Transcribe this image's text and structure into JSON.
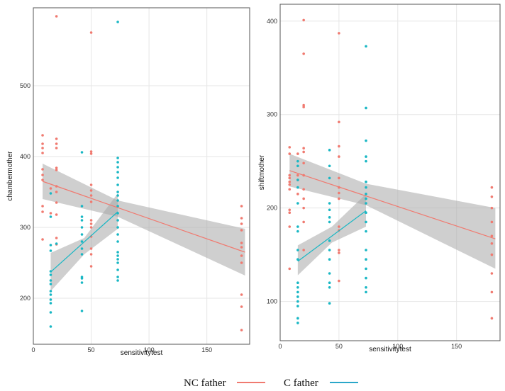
{
  "colors": {
    "nc": "#f07a70",
    "c": "#19b7c4",
    "band": "#a8a8a8"
  },
  "legend": {
    "items": [
      {
        "label": "NC father",
        "color": "#f07a70"
      },
      {
        "label": "C father",
        "color": "#2aa7c9"
      }
    ]
  },
  "chart_data": [
    {
      "type": "scatter",
      "xlabel": "sensitivitytest",
      "ylabel": "chambermother",
      "xlim": [
        0,
        187
      ],
      "ylim": [
        135,
        610
      ],
      "xticks": [
        0,
        50,
        100,
        150
      ],
      "yticks": [
        200,
        300,
        400,
        500
      ],
      "grid": true,
      "series": [
        {
          "name": "NC father",
          "points": [
            [
              8,
              430
            ],
            [
              8,
              418
            ],
            [
              8,
              412
            ],
            [
              8,
              405
            ],
            [
              8,
              382
            ],
            [
              8,
              374
            ],
            [
              8,
              367
            ],
            [
              8,
              330
            ],
            [
              8,
              322
            ],
            [
              8,
              283
            ],
            [
              15,
              355
            ],
            [
              15,
              320
            ],
            [
              20,
              598
            ],
            [
              20,
              425
            ],
            [
              20,
              418
            ],
            [
              20,
              412
            ],
            [
              20,
              384
            ],
            [
              20,
              381
            ],
            [
              20,
              358
            ],
            [
              20,
              350
            ],
            [
              20,
              335
            ],
            [
              20,
              318
            ],
            [
              20,
              285
            ],
            [
              20,
              276
            ],
            [
              50,
              575
            ],
            [
              50,
              407
            ],
            [
              50,
              404
            ],
            [
              50,
              360
            ],
            [
              50,
              352
            ],
            [
              50,
              345
            ],
            [
              50,
              336
            ],
            [
              50,
              310
            ],
            [
              50,
              305
            ],
            [
              50,
              300
            ],
            [
              50,
              287
            ],
            [
              50,
              270
            ],
            [
              50,
              262
            ],
            [
              50,
              245
            ],
            [
              180,
              330
            ],
            [
              180,
              313
            ],
            [
              180,
              305
            ],
            [
              180,
              296
            ],
            [
              180,
              278
            ],
            [
              180,
              272
            ],
            [
              180,
              260
            ],
            [
              180,
              250
            ],
            [
              180,
              205
            ],
            [
              180,
              188
            ],
            [
              180,
              155
            ]
          ],
          "fit": {
            "x": [
              8,
              183
            ],
            "y": [
              365,
              265
            ]
          },
          "band": {
            "x": [
              8,
              73,
              183
            ],
            "lower": [
              340,
              315,
              232
            ],
            "upper": [
              390,
              338,
              298
            ]
          }
        },
        {
          "name": "C father",
          "points": [
            [
              15,
              348
            ],
            [
              15,
              315
            ],
            [
              15,
              275
            ],
            [
              15,
              267
            ],
            [
              15,
              238
            ],
            [
              15,
              233
            ],
            [
              15,
              225
            ],
            [
              15,
              220
            ],
            [
              15,
              210
            ],
            [
              15,
              205
            ],
            [
              15,
              198
            ],
            [
              15,
              193
            ],
            [
              15,
              180
            ],
            [
              15,
              160
            ],
            [
              20,
              277
            ],
            [
              42,
              406
            ],
            [
              42,
              330
            ],
            [
              42,
              315
            ],
            [
              42,
              310
            ],
            [
              42,
              300
            ],
            [
              42,
              290
            ],
            [
              42,
              280
            ],
            [
              42,
              270
            ],
            [
              42,
              262
            ],
            [
              42,
              230
            ],
            [
              42,
              228
            ],
            [
              42,
              222
            ],
            [
              42,
              182
            ],
            [
              73,
              590
            ],
            [
              73,
              398
            ],
            [
              73,
              392
            ],
            [
              73,
              385
            ],
            [
              73,
              378
            ],
            [
              73,
              370
            ],
            [
              73,
              360
            ],
            [
              73,
              350
            ],
            [
              73,
              345
            ],
            [
              73,
              338
            ],
            [
              73,
              330
            ],
            [
              73,
              320
            ],
            [
              73,
              310
            ],
            [
              73,
              300
            ],
            [
              73,
              290
            ],
            [
              73,
              280
            ],
            [
              73,
              265
            ],
            [
              73,
              260
            ],
            [
              73,
              255
            ],
            [
              73,
              250
            ],
            [
              73,
              240
            ],
            [
              73,
              230
            ],
            [
              73,
              225
            ]
          ],
          "fit": {
            "x": [
              15,
              73
            ],
            "y": [
              237,
              322
            ]
          },
          "band": {
            "x": [
              15,
              44,
              73
            ],
            "lower": [
              210,
              262,
              298
            ],
            "upper": [
              264,
              285,
              348
            ]
          }
        }
      ]
    },
    {
      "type": "scatter",
      "xlabel": "sensitivitytest",
      "ylabel": "shiftmother",
      "xlim": [
        0,
        187
      ],
      "ylim": [
        58,
        418
      ],
      "xticks": [
        0,
        50,
        100,
        150
      ],
      "yticks": [
        100,
        200,
        300,
        400
      ],
      "grid": true,
      "series": [
        {
          "name": "NC father",
          "points": [
            [
              8,
              265
            ],
            [
              8,
              258
            ],
            [
              8,
              235
            ],
            [
              8,
              232
            ],
            [
              8,
              228
            ],
            [
              8,
              225
            ],
            [
              8,
              220
            ],
            [
              8,
              198
            ],
            [
              8,
              195
            ],
            [
              8,
              180
            ],
            [
              8,
              135
            ],
            [
              15,
              258
            ],
            [
              15,
              235
            ],
            [
              15,
              230
            ],
            [
              15,
              215
            ],
            [
              20,
              401
            ],
            [
              20,
              365
            ],
            [
              20,
              310
            ],
            [
              20,
              308
            ],
            [
              20,
              264
            ],
            [
              20,
              260
            ],
            [
              20,
              248
            ],
            [
              20,
              235
            ],
            [
              20,
              220
            ],
            [
              20,
              210
            ],
            [
              20,
              200
            ],
            [
              20,
              185
            ],
            [
              20,
              155
            ],
            [
              50,
              387
            ],
            [
              50,
              292
            ],
            [
              50,
              266
            ],
            [
              50,
              255
            ],
            [
              50,
              232
            ],
            [
              50,
              222
            ],
            [
              50,
              216
            ],
            [
              50,
              210
            ],
            [
              50,
              180
            ],
            [
              50,
              176
            ],
            [
              50,
              155
            ],
            [
              50,
              152
            ],
            [
              50,
              122
            ],
            [
              180,
              222
            ],
            [
              180,
              212
            ],
            [
              180,
              200
            ],
            [
              180,
              185
            ],
            [
              180,
              170
            ],
            [
              180,
              162
            ],
            [
              180,
              150
            ],
            [
              180,
              130
            ],
            [
              180,
              110
            ],
            [
              180,
              82
            ]
          ],
          "fit": {
            "x": [
              8,
              183
            ],
            "y": [
              240,
              167
            ]
          },
          "band": {
            "x": [
              8,
              73,
              183
            ],
            "lower": [
              223,
              203,
              135
            ],
            "upper": [
              258,
              226,
              200
            ]
          }
        },
        {
          "name": "C father",
          "points": [
            [
              15,
              250
            ],
            [
              15,
              245
            ],
            [
              15,
              230
            ],
            [
              15,
              222
            ],
            [
              15,
              205
            ],
            [
              15,
              180
            ],
            [
              15,
              175
            ],
            [
              15,
              155
            ],
            [
              15,
              145
            ],
            [
              15,
              120
            ],
            [
              15,
              115
            ],
            [
              15,
              110
            ],
            [
              15,
              105
            ],
            [
              15,
              100
            ],
            [
              15,
              95
            ],
            [
              15,
              82
            ],
            [
              15,
              77
            ],
            [
              42,
              262
            ],
            [
              42,
              245
            ],
            [
              42,
              232
            ],
            [
              42,
              205
            ],
            [
              42,
              198
            ],
            [
              42,
              190
            ],
            [
              42,
              185
            ],
            [
              42,
              165
            ],
            [
              42,
              155
            ],
            [
              42,
              145
            ],
            [
              42,
              130
            ],
            [
              42,
              120
            ],
            [
              42,
              115
            ],
            [
              42,
              98
            ],
            [
              73,
              373
            ],
            [
              73,
              307
            ],
            [
              73,
              272
            ],
            [
              73,
              255
            ],
            [
              73,
              250
            ],
            [
              73,
              228
            ],
            [
              73,
              222
            ],
            [
              73,
              215
            ],
            [
              73,
              210
            ],
            [
              73,
              205
            ],
            [
              73,
              195
            ],
            [
              73,
              185
            ],
            [
              73,
              175
            ],
            [
              73,
              155
            ],
            [
              73,
              145
            ],
            [
              73,
              135
            ],
            [
              73,
              125
            ],
            [
              73,
              115
            ],
            [
              73,
              110
            ]
          ],
          "fit": {
            "x": [
              15,
              73
            ],
            "y": [
              143,
              197
            ]
          },
          "band": {
            "x": [
              15,
              44,
              73
            ],
            "lower": [
              128,
              163,
              180
            ],
            "upper": [
              160,
              180,
              215
            ]
          }
        }
      ]
    }
  ]
}
